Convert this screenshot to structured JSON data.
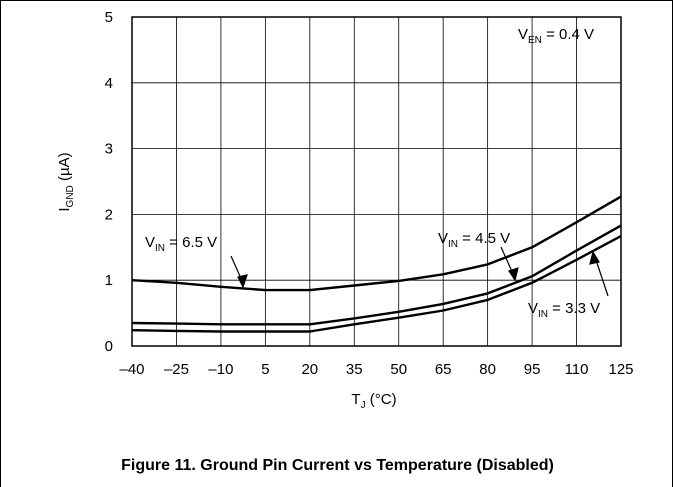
{
  "caption": "Figure 11. Ground Pin Current vs Temperature (Disabled)",
  "chart_data": {
    "type": "line",
    "x": [
      -40,
      -25,
      -10,
      5,
      20,
      35,
      50,
      65,
      80,
      95,
      110,
      125
    ],
    "xlim": [
      -40,
      125
    ],
    "ylim": [
      0,
      5
    ],
    "xticks": [
      "–40",
      "–25",
      "–10",
      "5",
      "20",
      "35",
      "50",
      "65",
      "80",
      "95",
      "110",
      "125"
    ],
    "yticks": [
      "0",
      "1",
      "2",
      "3",
      "4",
      "5"
    ],
    "xlabel": {
      "main": "T",
      "sub": "J",
      "rest": " (°C)"
    },
    "ylabel": {
      "main": "I",
      "sub": "GND",
      "rest": " (µA)"
    },
    "grid": true,
    "series": [
      {
        "name": "V_IN = 6.5 V",
        "values": [
          1.0,
          0.96,
          0.9,
          0.85,
          0.85,
          0.92,
          0.99,
          1.09,
          1.24,
          1.5,
          1.88,
          2.27
        ]
      },
      {
        "name": "V_IN = 4.5 V",
        "values": [
          0.35,
          0.34,
          0.33,
          0.33,
          0.33,
          0.42,
          0.52,
          0.64,
          0.8,
          1.06,
          1.45,
          1.83
        ]
      },
      {
        "name": "V_IN = 3.3 V",
        "values": [
          0.24,
          0.23,
          0.22,
          0.22,
          0.22,
          0.33,
          0.43,
          0.54,
          0.7,
          0.96,
          1.31,
          1.67
        ]
      }
    ],
    "annotations": {
      "ven": {
        "main": "V",
        "sub": "EN",
        "rest": " = 0.4 V"
      },
      "vin65": {
        "main": "V",
        "sub": "IN",
        "rest": " = 6.5 V"
      },
      "vin45": {
        "main": "V",
        "sub": "IN",
        "rest": " = 4.5 V"
      },
      "vin33": {
        "main": "V",
        "sub": "IN",
        "rest": " = 3.3 V"
      }
    }
  }
}
